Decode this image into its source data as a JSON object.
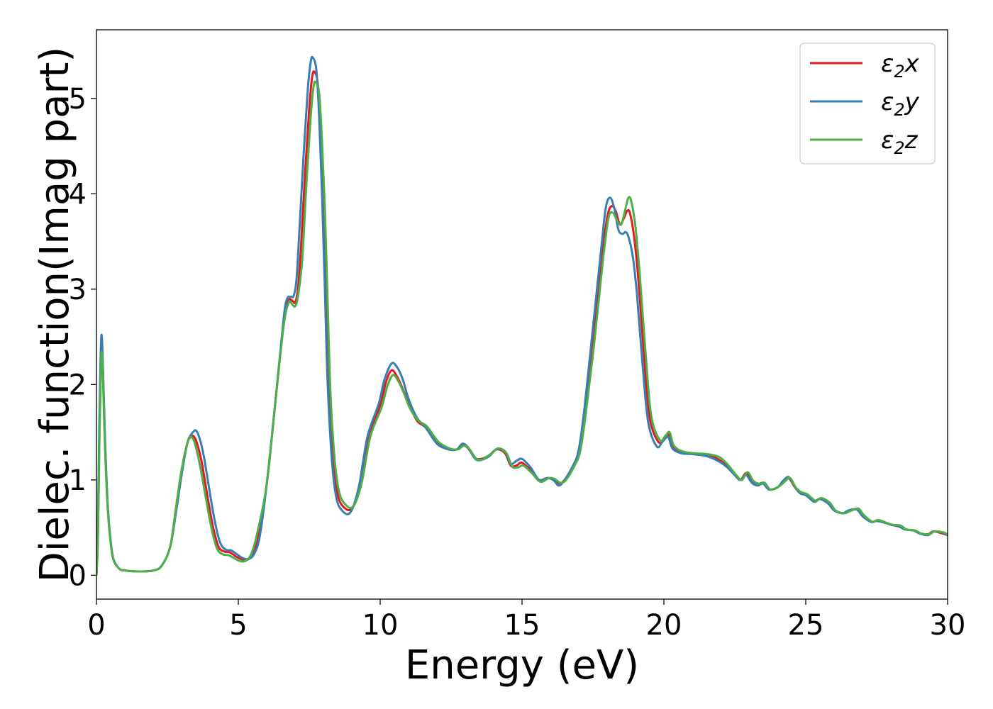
{
  "chart_data": {
    "type": "line",
    "title": "",
    "xlabel": "Energy (eV)",
    "ylabel": "Dielec. function(Imag part)",
    "xlim": [
      0,
      30
    ],
    "ylim": [
      -0.25,
      5.72
    ],
    "xticks": [
      0,
      5,
      10,
      15,
      20,
      25,
      30
    ],
    "xtick_labels": [
      "0",
      "5",
      "10",
      "15",
      "20",
      "25",
      "30"
    ],
    "yticks": [
      0,
      1,
      2,
      3,
      4,
      5
    ],
    "ytick_labels": [
      "0",
      "1",
      "2",
      "3",
      "4",
      "5"
    ],
    "grid": false,
    "legend_position": "top-right",
    "series": [
      {
        "name": "ε₂x",
        "legend_base": "ε",
        "legend_sub": "2",
        "legend_suffix": "x",
        "color": "#e41a1c",
        "x": [
          0.0,
          0.05,
          0.1,
          0.15,
          0.2,
          0.3,
          0.4,
          0.5,
          0.6,
          0.8,
          1.0,
          1.5,
          2.0,
          2.3,
          2.6,
          2.8,
          3.0,
          3.2,
          3.35,
          3.5,
          3.7,
          3.9,
          4.1,
          4.3,
          4.5,
          4.7,
          4.9,
          5.1,
          5.3,
          5.5,
          5.7,
          6.0,
          6.3,
          6.6,
          6.75,
          6.9,
          7.0,
          7.1,
          7.2,
          7.35,
          7.5,
          7.6,
          7.68,
          7.8,
          7.9,
          8.0,
          8.1,
          8.2,
          8.35,
          8.5,
          8.7,
          9.0,
          9.3,
          9.6,
          10.0,
          10.2,
          10.4,
          10.6,
          10.8,
          11.0,
          11.3,
          11.6,
          12.0,
          12.4,
          12.7,
          12.9,
          13.1,
          13.4,
          13.8,
          14.1,
          14.4,
          14.6,
          14.8,
          15.0,
          15.3,
          15.6,
          15.9,
          16.1,
          16.3,
          16.5,
          16.8,
          17.0,
          17.2,
          17.5,
          17.8,
          18.0,
          18.15,
          18.3,
          18.45,
          18.6,
          18.7,
          18.8,
          18.95,
          19.1,
          19.3,
          19.5,
          19.8,
          20.0,
          20.15,
          20.3,
          20.6,
          21.0,
          21.5,
          21.9,
          22.2,
          22.5,
          22.7,
          22.9,
          23.1,
          23.3,
          23.5,
          23.7,
          24.0,
          24.2,
          24.4,
          24.6,
          24.8,
          25.0,
          25.3,
          25.5,
          25.8,
          26.0,
          26.3,
          26.5,
          26.8,
          27.0,
          27.3,
          27.5,
          27.8,
          28.0,
          28.3,
          28.5,
          28.8,
          29.0,
          29.3,
          29.5,
          29.8,
          30.0
        ],
        "y": [
          0.0,
          0.4,
          1.4,
          2.2,
          2.4,
          1.4,
          0.7,
          0.35,
          0.16,
          0.07,
          0.05,
          0.04,
          0.05,
          0.1,
          0.3,
          0.7,
          1.1,
          1.38,
          1.46,
          1.42,
          1.2,
          0.85,
          0.52,
          0.3,
          0.25,
          0.24,
          0.2,
          0.17,
          0.16,
          0.22,
          0.4,
          0.95,
          1.8,
          2.65,
          2.88,
          2.88,
          2.86,
          3.0,
          3.4,
          4.2,
          4.9,
          5.22,
          5.28,
          5.15,
          4.6,
          3.9,
          2.9,
          1.95,
          1.2,
          0.85,
          0.72,
          0.7,
          0.95,
          1.45,
          1.78,
          2.02,
          2.15,
          2.08,
          1.95,
          1.8,
          1.62,
          1.55,
          1.4,
          1.33,
          1.32,
          1.37,
          1.33,
          1.22,
          1.25,
          1.32,
          1.28,
          1.15,
          1.15,
          1.18,
          1.1,
          1.0,
          1.02,
          1.0,
          0.96,
          1.0,
          1.15,
          1.3,
          1.7,
          2.5,
          3.3,
          3.75,
          3.87,
          3.82,
          3.68,
          3.75,
          3.82,
          3.8,
          3.55,
          3.1,
          2.3,
          1.65,
          1.4,
          1.43,
          1.48,
          1.35,
          1.29,
          1.28,
          1.26,
          1.22,
          1.15,
          1.05,
          1.0,
          1.07,
          0.98,
          0.95,
          0.97,
          0.9,
          0.92,
          0.98,
          1.02,
          0.93,
          0.86,
          0.84,
          0.78,
          0.8,
          0.75,
          0.68,
          0.65,
          0.67,
          0.69,
          0.62,
          0.56,
          0.57,
          0.55,
          0.53,
          0.51,
          0.48,
          0.47,
          0.44,
          0.43,
          0.46,
          0.44,
          0.42
        ]
      },
      {
        "name": "ε₂y",
        "legend_base": "ε",
        "legend_sub": "2",
        "legend_suffix": "y",
        "color": "#377eb8",
        "x": [
          0.0,
          0.05,
          0.1,
          0.15,
          0.2,
          0.3,
          0.4,
          0.5,
          0.6,
          0.8,
          1.0,
          1.5,
          2.0,
          2.3,
          2.6,
          2.8,
          3.0,
          3.2,
          3.4,
          3.55,
          3.75,
          3.95,
          4.15,
          4.35,
          4.55,
          4.75,
          4.95,
          5.15,
          5.35,
          5.55,
          5.75,
          6.0,
          6.3,
          6.6,
          6.72,
          6.85,
          6.95,
          7.05,
          7.15,
          7.3,
          7.45,
          7.55,
          7.62,
          7.75,
          7.85,
          7.95,
          8.05,
          8.15,
          8.3,
          8.45,
          8.65,
          8.95,
          9.25,
          9.55,
          9.95,
          10.15,
          10.4,
          10.6,
          10.8,
          11.0,
          11.3,
          11.6,
          12.0,
          12.4,
          12.7,
          12.9,
          13.1,
          13.4,
          13.8,
          14.1,
          14.4,
          14.6,
          14.8,
          15.0,
          15.3,
          15.6,
          15.9,
          16.1,
          16.3,
          16.5,
          16.8,
          17.0,
          17.2,
          17.5,
          17.8,
          17.95,
          18.1,
          18.25,
          18.4,
          18.55,
          18.65,
          18.75,
          18.9,
          19.05,
          19.25,
          19.45,
          19.75,
          19.95,
          20.15,
          20.3,
          20.6,
          21.0,
          21.5,
          21.9,
          22.2,
          22.5,
          22.7,
          22.9,
          23.1,
          23.3,
          23.5,
          23.7,
          24.0,
          24.2,
          24.4,
          24.6,
          24.8,
          25.0,
          25.3,
          25.5,
          25.8,
          26.0,
          26.3,
          26.5,
          26.8,
          27.0,
          27.3,
          27.5,
          27.8,
          28.0,
          28.3,
          28.5,
          28.8,
          29.0,
          29.3,
          29.5,
          29.8,
          30.0
        ],
        "y": [
          0.0,
          0.5,
          1.6,
          2.35,
          2.45,
          1.45,
          0.72,
          0.36,
          0.17,
          0.07,
          0.05,
          0.04,
          0.05,
          0.1,
          0.3,
          0.65,
          1.05,
          1.38,
          1.5,
          1.5,
          1.3,
          0.95,
          0.6,
          0.35,
          0.27,
          0.26,
          0.22,
          0.18,
          0.17,
          0.22,
          0.4,
          0.95,
          1.8,
          2.7,
          2.9,
          2.92,
          2.93,
          3.1,
          3.6,
          4.4,
          5.1,
          5.38,
          5.43,
          5.3,
          4.8,
          4.0,
          3.0,
          2.0,
          1.2,
          0.82,
          0.68,
          0.66,
          0.93,
          1.45,
          1.8,
          2.05,
          2.22,
          2.18,
          2.05,
          1.85,
          1.65,
          1.55,
          1.38,
          1.32,
          1.32,
          1.38,
          1.34,
          1.21,
          1.24,
          1.32,
          1.3,
          1.17,
          1.2,
          1.22,
          1.13,
          1.0,
          1.02,
          1.0,
          0.94,
          1.0,
          1.15,
          1.32,
          1.75,
          2.6,
          3.45,
          3.85,
          3.96,
          3.85,
          3.62,
          3.58,
          3.6,
          3.55,
          3.35,
          2.95,
          2.2,
          1.6,
          1.35,
          1.4,
          1.45,
          1.33,
          1.28,
          1.27,
          1.25,
          1.2,
          1.14,
          1.05,
          1.0,
          1.05,
          0.97,
          0.94,
          0.96,
          0.9,
          0.92,
          0.99,
          1.03,
          0.94,
          0.86,
          0.84,
          0.77,
          0.8,
          0.75,
          0.68,
          0.65,
          0.68,
          0.69,
          0.62,
          0.56,
          0.57,
          0.55,
          0.53,
          0.51,
          0.48,
          0.47,
          0.44,
          0.42,
          0.46,
          0.45,
          0.42
        ]
      },
      {
        "name": "ε₂z",
        "legend_base": "ε",
        "legend_sub": "2",
        "legend_suffix": "z",
        "color": "#4daf4a",
        "x": [
          0.0,
          0.05,
          0.1,
          0.15,
          0.2,
          0.3,
          0.4,
          0.5,
          0.6,
          0.8,
          1.0,
          1.5,
          2.0,
          2.3,
          2.6,
          2.8,
          3.0,
          3.2,
          3.3,
          3.45,
          3.65,
          3.85,
          4.05,
          4.25,
          4.45,
          4.65,
          4.85,
          5.05,
          5.25,
          5.45,
          5.65,
          6.0,
          6.3,
          6.6,
          6.78,
          6.9,
          7.0,
          7.1,
          7.25,
          7.4,
          7.55,
          7.65,
          7.72,
          7.85,
          7.95,
          8.05,
          8.15,
          8.25,
          8.4,
          8.55,
          8.75,
          9.05,
          9.35,
          9.65,
          10.05,
          10.25,
          10.45,
          10.65,
          10.85,
          11.05,
          11.35,
          11.65,
          12.05,
          12.45,
          12.75,
          12.95,
          13.15,
          13.45,
          13.85,
          14.15,
          14.45,
          14.65,
          14.85,
          15.05,
          15.35,
          15.65,
          15.95,
          16.15,
          16.35,
          16.55,
          16.85,
          17.05,
          17.25,
          17.55,
          17.85,
          18.05,
          18.2,
          18.35,
          18.5,
          18.65,
          18.75,
          18.85,
          19.0,
          19.15,
          19.35,
          19.55,
          19.85,
          20.05,
          20.2,
          20.35,
          20.65,
          21.05,
          21.55,
          21.95,
          22.25,
          22.55,
          22.75,
          22.95,
          23.15,
          23.35,
          23.55,
          23.75,
          24.05,
          24.25,
          24.45,
          24.65,
          24.85,
          25.05,
          25.35,
          25.55,
          25.85,
          26.05,
          26.35,
          26.55,
          26.85,
          27.05,
          27.35,
          27.55,
          27.85,
          28.05,
          28.35,
          28.55,
          28.85,
          29.05,
          29.35,
          29.55,
          29.85,
          30.0
        ],
        "y": [
          0.0,
          0.35,
          1.3,
          2.1,
          2.3,
          1.35,
          0.68,
          0.34,
          0.16,
          0.07,
          0.05,
          0.04,
          0.05,
          0.1,
          0.3,
          0.7,
          1.1,
          1.38,
          1.45,
          1.4,
          1.15,
          0.82,
          0.5,
          0.28,
          0.22,
          0.21,
          0.18,
          0.15,
          0.15,
          0.22,
          0.42,
          0.95,
          1.8,
          2.62,
          2.86,
          2.84,
          2.82,
          2.92,
          3.3,
          4.1,
          4.8,
          5.12,
          5.17,
          5.05,
          4.55,
          3.85,
          2.85,
          1.9,
          1.2,
          0.88,
          0.75,
          0.72,
          0.97,
          1.45,
          1.76,
          1.98,
          2.1,
          2.03,
          1.9,
          1.75,
          1.62,
          1.56,
          1.4,
          1.33,
          1.32,
          1.36,
          1.32,
          1.21,
          1.26,
          1.33,
          1.28,
          1.14,
          1.13,
          1.15,
          1.07,
          0.98,
          1.02,
          1.01,
          0.97,
          1.0,
          1.15,
          1.3,
          1.7,
          2.45,
          3.3,
          3.75,
          3.8,
          3.72,
          3.68,
          3.85,
          3.96,
          3.92,
          3.65,
          3.15,
          2.35,
          1.68,
          1.42,
          1.46,
          1.5,
          1.36,
          1.3,
          1.28,
          1.27,
          1.24,
          1.16,
          1.05,
          1.0,
          1.08,
          0.99,
          0.96,
          0.97,
          0.9,
          0.93,
          0.98,
          1.02,
          0.92,
          0.87,
          0.85,
          0.78,
          0.81,
          0.76,
          0.68,
          0.65,
          0.67,
          0.7,
          0.63,
          0.56,
          0.58,
          0.55,
          0.53,
          0.52,
          0.48,
          0.47,
          0.44,
          0.43,
          0.46,
          0.45,
          0.43
        ]
      }
    ]
  }
}
